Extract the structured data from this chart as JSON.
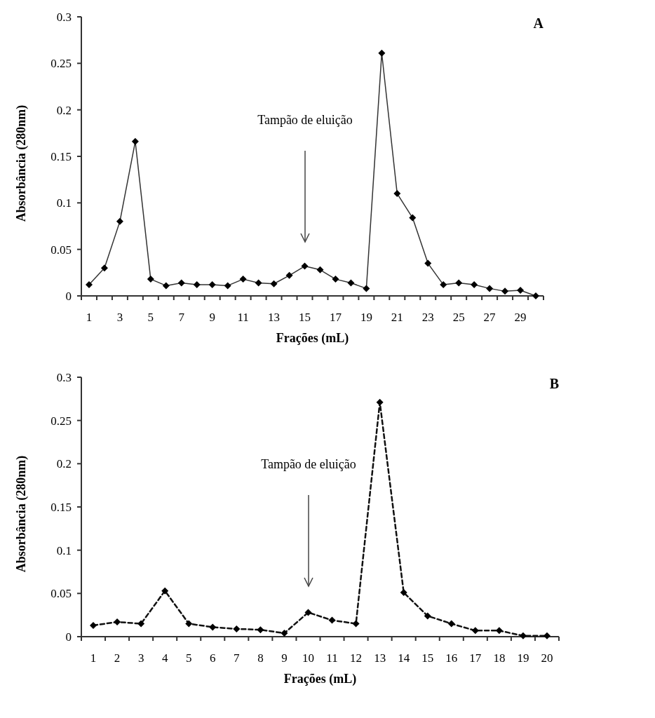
{
  "chart_data": [
    {
      "type": "line",
      "title": "A",
      "xlabel": "Frações (mL)",
      "ylabel": "Absorbância (280nm)",
      "categories": [
        "1",
        null,
        "3",
        null,
        "5",
        null,
        "7",
        null,
        "9",
        null,
        "11",
        null,
        "13",
        null,
        "15",
        null,
        "17",
        null,
        "19",
        null,
        "21",
        null,
        "23",
        null,
        "25",
        null,
        "27",
        null,
        "29",
        null
      ],
      "ylim": [
        0,
        0.3
      ],
      "yticks": [
        0,
        0.05,
        0.1,
        0.15,
        0.2,
        0.25,
        0.3
      ],
      "marker": "diamond",
      "line_style": "solid",
      "series": [
        {
          "color": "#333333",
          "values": [
            0.012,
            0.03,
            0.08,
            0.166,
            0.018,
            0.011,
            0.014,
            0.012,
            0.012,
            0.011,
            0.018,
            0.014,
            0.013,
            0.022,
            0.032,
            0.028,
            0.018,
            0.014,
            0.008,
            0.261,
            0.11,
            0.084,
            0.035,
            0.012,
            0.014,
            0.012,
            0.008,
            0.005,
            0.006,
            0.0
          ]
        }
      ],
      "annotations": [
        "Tampão de eluição"
      ]
    },
    {
      "type": "line",
      "title": "B",
      "xlabel": "Frações (mL)",
      "ylabel": "Absorbância (280nm)",
      "categories": [
        "1",
        "2",
        "3",
        "4",
        "5",
        "6",
        "7",
        "8",
        "9",
        "10",
        "11",
        "12",
        "13",
        "14",
        "15",
        "16",
        "17",
        "18",
        "19",
        "20"
      ],
      "ylim": [
        0,
        0.3
      ],
      "yticks": [
        0,
        0.05,
        0.1,
        0.15,
        0.2,
        0.25,
        0.3
      ],
      "marker": "diamond",
      "line_style": "dashed",
      "series": [
        {
          "color": "#111111",
          "values": [
            0.013,
            0.017,
            0.015,
            0.053,
            0.015,
            0.011,
            0.009,
            0.008,
            0.004,
            0.028,
            0.019,
            0.015,
            0.271,
            0.051,
            0.024,
            0.015,
            0.007,
            0.007,
            0.001,
            0.001
          ]
        }
      ],
      "annotations": [
        "Tampão de eluição"
      ]
    }
  ]
}
